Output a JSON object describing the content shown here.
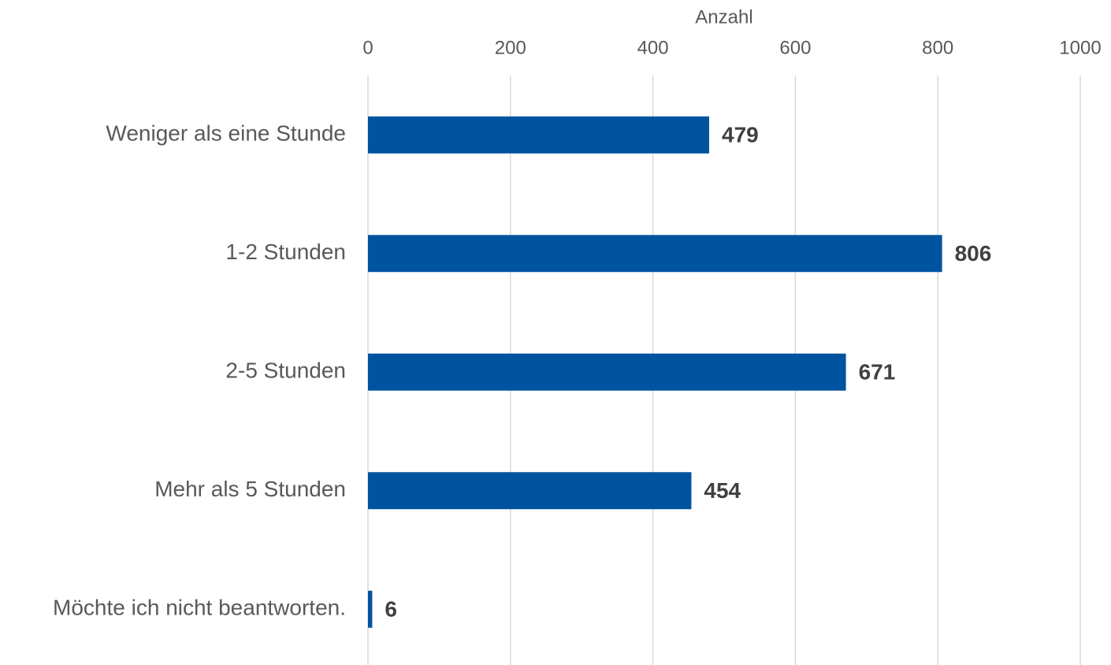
{
  "chart_data": {
    "type": "bar",
    "orientation": "horizontal",
    "xlabel": "Anzahl",
    "categories": [
      "Weniger als eine Stunde",
      "1-2 Stunden",
      "2-5 Stunden",
      "Mehr als 5 Stunden",
      "Möchte ich nicht beantworten."
    ],
    "values": [
      479,
      806,
      671,
      454,
      6
    ],
    "color": "#00539f",
    "xlim": [
      0,
      1000
    ],
    "xticks": [
      0,
      200,
      400,
      600,
      800,
      1000
    ],
    "grid": true
  }
}
